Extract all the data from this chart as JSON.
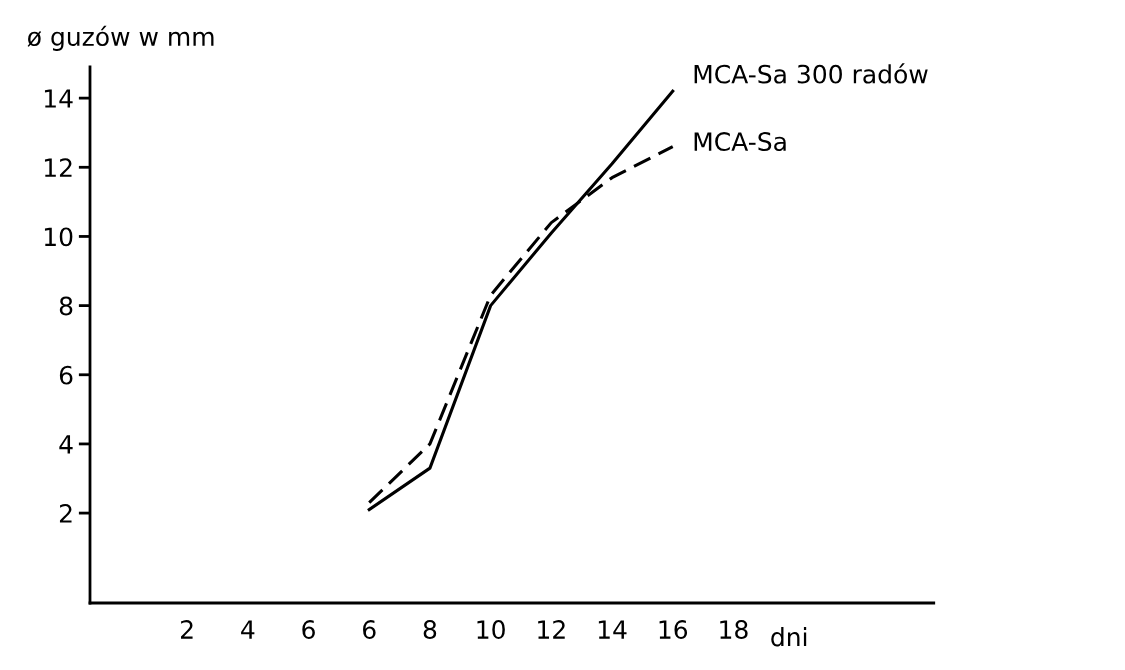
{
  "chart_data": {
    "type": "line",
    "ylabel": "ø guzów w mm",
    "xlabel": "dni",
    "categories": [
      "2",
      "4",
      "6",
      "6",
      "8",
      "10",
      "12",
      "14",
      "16",
      "18"
    ],
    "ylim": [
      -0.6,
      14.9
    ],
    "yticks": [
      2,
      4,
      6,
      8,
      10,
      12,
      14
    ],
    "grid": false,
    "legend": false,
    "marker": "none",
    "series": [
      {
        "name": "MCA-Sa 300 radów",
        "color": "#000000",
        "line_style": "solid",
        "values": [
          null,
          null,
          null,
          2.1,
          3.3,
          8.0,
          10.1,
          12.1,
          14.2,
          null
        ]
      },
      {
        "name": "MCA-Sa",
        "color": "#000000",
        "line_style": "dashed",
        "values": [
          null,
          null,
          null,
          2.3,
          4.0,
          8.3,
          10.4,
          11.7,
          12.6,
          null
        ]
      }
    ]
  }
}
